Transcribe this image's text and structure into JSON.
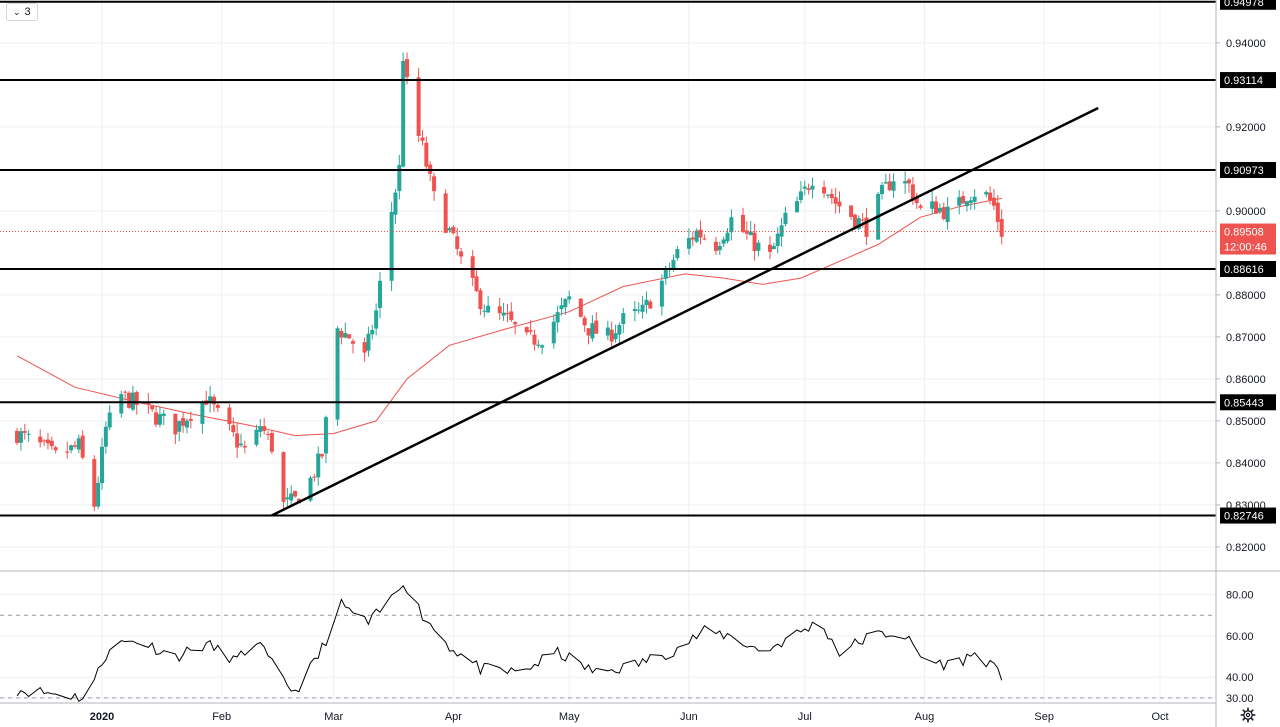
{
  "toolbar": {
    "indicator_count": "3"
  },
  "colors": {
    "up": "#26a69a",
    "down": "#ef5350",
    "ma": "#ef5350",
    "level": "#000000",
    "trend": "#000000",
    "rsi": "#000000",
    "grid": "#eef0f3",
    "price_line": "#ef5350",
    "badge_bg": "#000000",
    "badge_text": "#ffffff",
    "price_badge_bg": "#ef5350"
  },
  "chart_data": {
    "type": "candlestick",
    "price_axis": {
      "ylim": [
        0.8145,
        0.9502
      ],
      "ticks": [
        "0.82000",
        "0.83000",
        "0.84000",
        "0.85000",
        "0.86000",
        "0.87000",
        "0.88000",
        "0.90000",
        "0.92000",
        "0.94000"
      ]
    },
    "x_axis": {
      "ticks": [
        {
          "label": "2020",
          "date": "2020-01-01",
          "bold": true
        },
        {
          "label": "Feb",
          "date": "2020-02-01",
          "bold": false
        },
        {
          "label": "Mar",
          "date": "2020-03-01",
          "bold": false
        },
        {
          "label": "Apr",
          "date": "2020-04-01",
          "bold": false
        },
        {
          "label": "May",
          "date": "2020-05-01",
          "bold": false
        },
        {
          "label": "Jun",
          "date": "2020-06-01",
          "bold": false
        },
        {
          "label": "Jul",
          "date": "2020-07-01",
          "bold": false
        },
        {
          "label": "Aug",
          "date": "2020-08-01",
          "bold": false
        },
        {
          "label": "Sep",
          "date": "2020-09-01",
          "bold": false
        },
        {
          "label": "Oct",
          "date": "2020-10-01",
          "bold": false
        }
      ],
      "range": [
        "2019-12-10",
        "2020-10-15"
      ]
    },
    "levels": [
      {
        "value": 0.94978,
        "label": "0.94978"
      },
      {
        "value": 0.93114,
        "label": "0.93114"
      },
      {
        "value": 0.90973,
        "label": "0.90973"
      },
      {
        "value": 0.88616,
        "label": "0.88616"
      },
      {
        "value": 0.85443,
        "label": "0.85443"
      },
      {
        "value": 0.82746,
        "label": "0.82746"
      }
    ],
    "last_price": {
      "value": 0.89508,
      "label": "0.89508",
      "countdown": "12:00:46"
    },
    "trendline": [
      {
        "date": "2020-02-14",
        "value": 0.8275
      },
      {
        "date": "2020-09-15",
        "value": 0.9245
      }
    ],
    "rsi": {
      "ylim": [
        28,
        90
      ],
      "ticks": [
        "80.00",
        "60.00",
        "40.00",
        "30.00"
      ],
      "dashed_levels": [
        70,
        30
      ]
    },
    "candles_anchor": [
      [
        "2019-12-10",
        0.847
      ],
      [
        "2019-12-16",
        0.844
      ],
      [
        "2019-12-20",
        0.8415
      ],
      [
        "2019-12-26",
        0.844
      ],
      [
        "2019-12-30",
        0.83
      ],
      [
        "2020-01-02",
        0.848
      ],
      [
        "2020-01-06",
        0.856
      ],
      [
        "2020-01-10",
        0.854
      ],
      [
        "2020-01-15",
        0.851
      ],
      [
        "2020-01-20",
        0.8485
      ],
      [
        "2020-01-24",
        0.852
      ],
      [
        "2020-01-28",
        0.8555
      ],
      [
        "2020-02-01",
        0.85
      ],
      [
        "2020-02-05",
        0.845
      ],
      [
        "2020-02-08",
        0.842
      ],
      [
        "2020-02-11",
        0.849
      ],
      [
        "2020-02-14",
        0.844
      ],
      [
        "2020-02-17",
        0.83
      ],
      [
        "2020-02-20",
        0.831
      ],
      [
        "2020-02-24",
        0.836
      ],
      [
        "2020-02-27",
        0.842
      ],
      [
        "2020-03-02",
        0.872
      ],
      [
        "2020-03-05",
        0.87
      ],
      [
        "2020-03-09",
        0.865
      ],
      [
        "2020-03-12",
        0.876
      ],
      [
        "2020-03-15",
        0.895
      ],
      [
        "2020-03-18",
        0.91
      ],
      [
        "2020-03-19",
        0.937
      ],
      [
        "2020-03-21",
        0.923
      ],
      [
        "2020-03-24",
        0.915
      ],
      [
        "2020-03-27",
        0.903
      ],
      [
        "2020-03-31",
        0.895
      ],
      [
        "2020-04-03",
        0.888
      ],
      [
        "2020-04-07",
        0.88
      ],
      [
        "2020-04-10",
        0.876
      ],
      [
        "2020-04-15",
        0.874
      ],
      [
        "2020-04-20",
        0.869
      ],
      [
        "2020-04-24",
        0.87
      ],
      [
        "2020-04-28",
        0.875
      ],
      [
        "2020-05-01",
        0.879
      ],
      [
        "2020-05-06",
        0.872
      ],
      [
        "2020-05-11",
        0.87
      ],
      [
        "2020-05-15",
        0.874
      ],
      [
        "2020-05-20",
        0.876
      ],
      [
        "2020-05-25",
        0.883
      ],
      [
        "2020-05-29",
        0.89
      ],
      [
        "2020-06-03",
        0.895
      ],
      [
        "2020-06-08",
        0.892
      ],
      [
        "2020-06-12",
        0.898
      ],
      [
        "2020-06-17",
        0.893
      ],
      [
        "2020-06-22",
        0.889
      ],
      [
        "2020-06-26",
        0.898
      ],
      [
        "2020-06-30",
        0.903
      ],
      [
        "2020-07-03",
        0.908
      ],
      [
        "2020-07-06",
        0.906
      ],
      [
        "2020-07-09",
        0.902
      ],
      [
        "2020-07-13",
        0.899
      ],
      [
        "2020-07-17",
        0.896
      ],
      [
        "2020-07-21",
        0.904
      ],
      [
        "2020-07-24",
        0.908
      ],
      [
        "2020-07-28",
        0.906
      ],
      [
        "2020-07-31",
        0.9
      ],
      [
        "2020-08-04",
        0.901
      ],
      [
        "2020-08-08",
        0.899
      ],
      [
        "2020-08-12",
        0.904
      ],
      [
        "2020-08-16",
        0.905
      ],
      [
        "2020-08-19",
        0.901
      ],
      [
        "2020-08-21",
        0.895
      ]
    ],
    "ma_anchor": [
      [
        "2019-12-10",
        0.8655
      ],
      [
        "2019-12-25",
        0.858
      ],
      [
        "2020-01-10",
        0.8545
      ],
      [
        "2020-01-25",
        0.8515
      ],
      [
        "2020-02-08",
        0.849
      ],
      [
        "2020-02-20",
        0.8465
      ],
      [
        "2020-03-01",
        0.847
      ],
      [
        "2020-03-12",
        0.85
      ],
      [
        "2020-03-20",
        0.86
      ],
      [
        "2020-03-31",
        0.868
      ],
      [
        "2020-04-15",
        0.872
      ],
      [
        "2020-05-01",
        0.876
      ],
      [
        "2020-05-15",
        0.882
      ],
      [
        "2020-05-31",
        0.885
      ],
      [
        "2020-06-10",
        0.884
      ],
      [
        "2020-06-20",
        0.8825
      ],
      [
        "2020-06-30",
        0.884
      ],
      [
        "2020-07-10",
        0.888
      ],
      [
        "2020-07-20",
        0.892
      ],
      [
        "2020-07-31",
        0.8985
      ],
      [
        "2020-08-10",
        0.901
      ],
      [
        "2020-08-21",
        0.903
      ]
    ],
    "rsi_anchor": [
      [
        "2019-12-10",
        34
      ],
      [
        "2019-12-20",
        32
      ],
      [
        "2019-12-28",
        30
      ],
      [
        "2020-01-03",
        55
      ],
      [
        "2020-01-10",
        58
      ],
      [
        "2020-01-20",
        50
      ],
      [
        "2020-01-28",
        56
      ],
      [
        "2020-02-05",
        48
      ],
      [
        "2020-02-10",
        58
      ],
      [
        "2020-02-16",
        40
      ],
      [
        "2020-02-20",
        33
      ],
      [
        "2020-02-26",
        50
      ],
      [
        "2020-03-03",
        75
      ],
      [
        "2020-03-10",
        66
      ],
      [
        "2020-03-16",
        78
      ],
      [
        "2020-03-19",
        87
      ],
      [
        "2020-03-24",
        70
      ],
      [
        "2020-03-31",
        55
      ],
      [
        "2020-04-08",
        44
      ],
      [
        "2020-04-18",
        42
      ],
      [
        "2020-04-28",
        52
      ],
      [
        "2020-05-08",
        42
      ],
      [
        "2020-05-18",
        46
      ],
      [
        "2020-05-28",
        53
      ],
      [
        "2020-06-05",
        62
      ],
      [
        "2020-06-12",
        60
      ],
      [
        "2020-06-20",
        52
      ],
      [
        "2020-06-30",
        62
      ],
      [
        "2020-07-05",
        67
      ],
      [
        "2020-07-10",
        52
      ],
      [
        "2020-07-18",
        60
      ],
      [
        "2020-07-26",
        62
      ],
      [
        "2020-08-01",
        48
      ],
      [
        "2020-08-08",
        46
      ],
      [
        "2020-08-15",
        52
      ],
      [
        "2020-08-21",
        40
      ]
    ]
  }
}
